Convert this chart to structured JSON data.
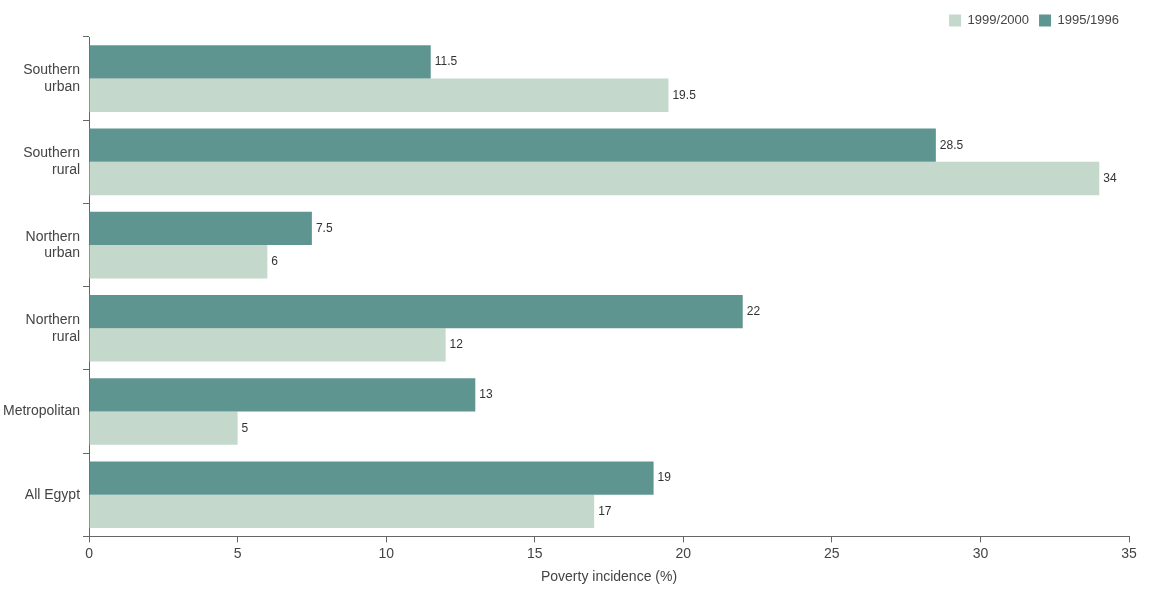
{
  "chart_data": {
    "type": "bar",
    "orientation": "horizontal",
    "xlabel": "Poverty incidence (%)",
    "categories": [
      "Southern urban",
      "Southern rural",
      "Northern urban",
      "Northern rural",
      "Metropolitan",
      "All Egypt"
    ],
    "series": [
      {
        "name": "1995/1996",
        "color": "#5f9590",
        "values": [
          11.5,
          28.5,
          7.5,
          22,
          13,
          19
        ]
      },
      {
        "name": "1999/2000",
        "color": "#c4d8cc",
        "values": [
          19.5,
          34,
          6,
          12,
          5,
          17
        ]
      }
    ],
    "xlim": [
      0,
      35
    ],
    "xticks": [
      0,
      5,
      10,
      15,
      20,
      25,
      30,
      35
    ],
    "grid": false,
    "legend": "top right",
    "data_labels": true
  }
}
